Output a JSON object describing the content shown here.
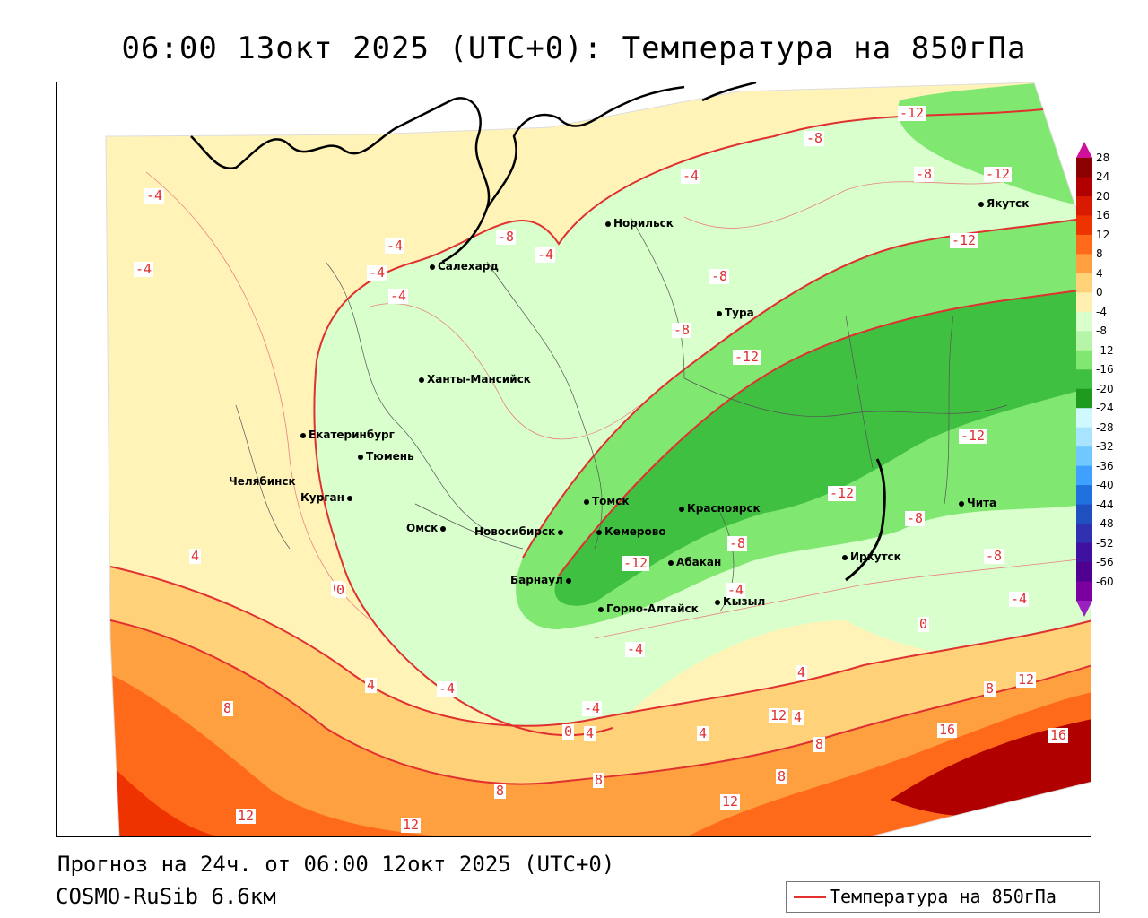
{
  "title": "06:00 13окт 2025 (UTC+0): Температура на 850гПа",
  "forecast_line": "Прогноз на 24ч. от 06:00 12окт 2025 (UTC+0)",
  "model_line": "COSMO-RuSib 6.6км",
  "legend": {
    "label": "Температура на 850гПа",
    "color": "#e03030"
  },
  "colorbar": {
    "labels": [
      "28",
      "24",
      "20",
      "16",
      "12",
      "8",
      "4",
      "0",
      "-4",
      "-8",
      "-12",
      "-16",
      "-20",
      "-24",
      "-28",
      "-32",
      "-36",
      "-40",
      "-44",
      "-48",
      "-52",
      "-56",
      "-60"
    ],
    "colors": [
      "#8b0000",
      "#b00000",
      "#d81a00",
      "#ee3300",
      "#ff6a1a",
      "#ffa040",
      "#ffd27a",
      "#fff0b0",
      "#d8ffcc",
      "#b6f5a8",
      "#80e870",
      "#40c040",
      "#1e9a1e",
      "#d0f8ff",
      "#a8e4ff",
      "#70c8ff",
      "#40a0ff",
      "#2070e0",
      "#2050c0",
      "#3030b0",
      "#4010a0",
      "#500090",
      "#7a00a0"
    ]
  },
  "cities": [
    {
      "name": "Норильск"
    },
    {
      "name": "Якутск"
    },
    {
      "name": "Салехард"
    },
    {
      "name": "Тура"
    },
    {
      "name": "Ханты-Мансийск"
    },
    {
      "name": "Екатеринбург"
    },
    {
      "name": "Тюмень"
    },
    {
      "name": "Челябинск"
    },
    {
      "name": "Курган"
    },
    {
      "name": "Омск"
    },
    {
      "name": "Томск"
    },
    {
      "name": "Новосибирск"
    },
    {
      "name": "Кемерово"
    },
    {
      "name": "Красноярск"
    },
    {
      "name": "Абакан"
    },
    {
      "name": "Барнаул"
    },
    {
      "name": "Горно-Алтайск"
    },
    {
      "name": "Кызыл"
    },
    {
      "name": "Иркутск"
    },
    {
      "name": "Чита"
    }
  ],
  "contour_labels": [
    "-4",
    "-4",
    "-4",
    "-4",
    "-4",
    "-4",
    "-8",
    "-8",
    "-8",
    "-12",
    "-12",
    "-12",
    "-12",
    "-12",
    "-12",
    "-8",
    "-8",
    "-8",
    "-4",
    "0",
    "4",
    "0",
    "-4",
    "-4",
    "4",
    "8",
    "0",
    "-4",
    "4",
    "8",
    "12",
    "16",
    "16",
    "12",
    "8",
    "8",
    "12",
    "12",
    "8",
    "4",
    "4",
    "-12",
    "-8",
    "-4",
    "0",
    "4",
    "8",
    "12",
    "-4",
    "-8"
  ]
}
